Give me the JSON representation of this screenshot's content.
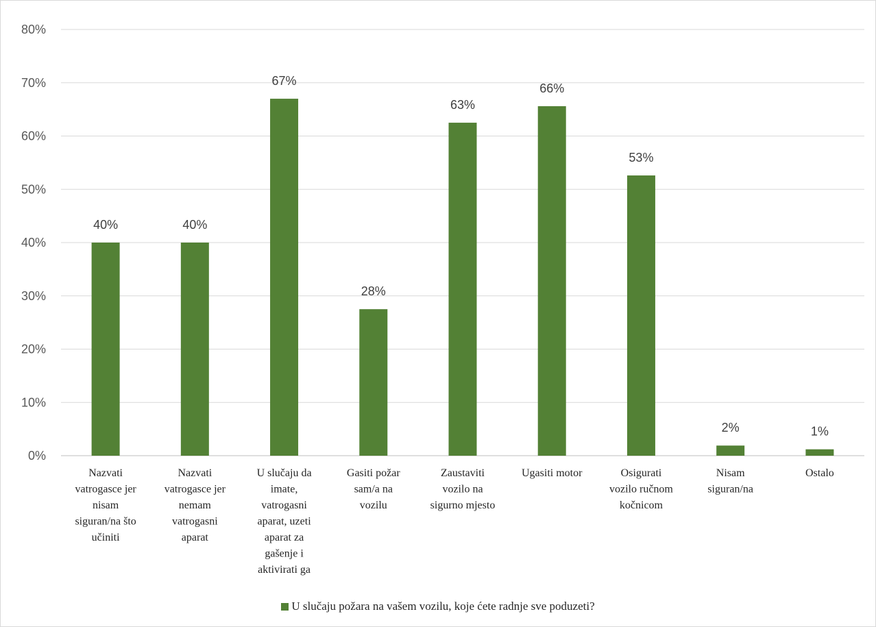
{
  "chart_data": {
    "type": "bar",
    "categories": [
      "Nazvati vatrogasce  jer nisam siguran/na što učiniti",
      "Nazvati vatrogasce jer nemam vatrogasni aparat",
      "U slučaju da imate, vatrogasni aparat, uzeti aparat za gašenje  i aktivirati ga",
      "Gasiti požar sam/a na vozilu",
      "Zaustaviti vozilo na sigurno mjesto",
      "Ugasiti motor",
      "Osigurati vozilo ručnom kočnicom",
      "Nisam siguran/na",
      "Ostalo"
    ],
    "category_lines": [
      [
        "Nazvati",
        "vatrogasce  jer",
        "nisam",
        "siguran/na što",
        "učiniti"
      ],
      [
        "Nazvati",
        "vatrogasce jer",
        "nemam",
        "vatrogasni",
        "aparat"
      ],
      [
        "U slučaju da",
        "imate,",
        "vatrogasni",
        "aparat, uzeti",
        "aparat za",
        "gašenje  i",
        "aktivirati ga"
      ],
      [
        "Gasiti požar",
        "sam/a na",
        "vozilu"
      ],
      [
        "Zaustaviti",
        "vozilo na",
        "sigurno mjesto"
      ],
      [
        "Ugasiti motor"
      ],
      [
        "Osigurati",
        "vozilo ručnom",
        "kočnicom"
      ],
      [
        "Nisam",
        "siguran/na"
      ],
      [
        "Ostalo"
      ]
    ],
    "series": [
      {
        "name": "U slučaju požara na vašem vozilu, koje ćete radnje sve poduzeti?",
        "values": [
          40,
          40,
          67,
          27.5,
          62.5,
          65.6,
          52.6,
          1.9,
          1.2
        ],
        "data_labels": [
          "40%",
          "40%",
          "67%",
          "28%",
          "63%",
          "66%",
          "53%",
          "2%",
          "1%"
        ]
      }
    ],
    "ylim": [
      0,
      80
    ],
    "yticks": [
      "0%",
      "10%",
      "20%",
      "30%",
      "40%",
      "50%",
      "60%",
      "70%",
      "80%"
    ],
    "grid": true,
    "legend_position": "bottom",
    "colors": {
      "bar": "#538135",
      "grid": "#d9d9d9"
    }
  }
}
